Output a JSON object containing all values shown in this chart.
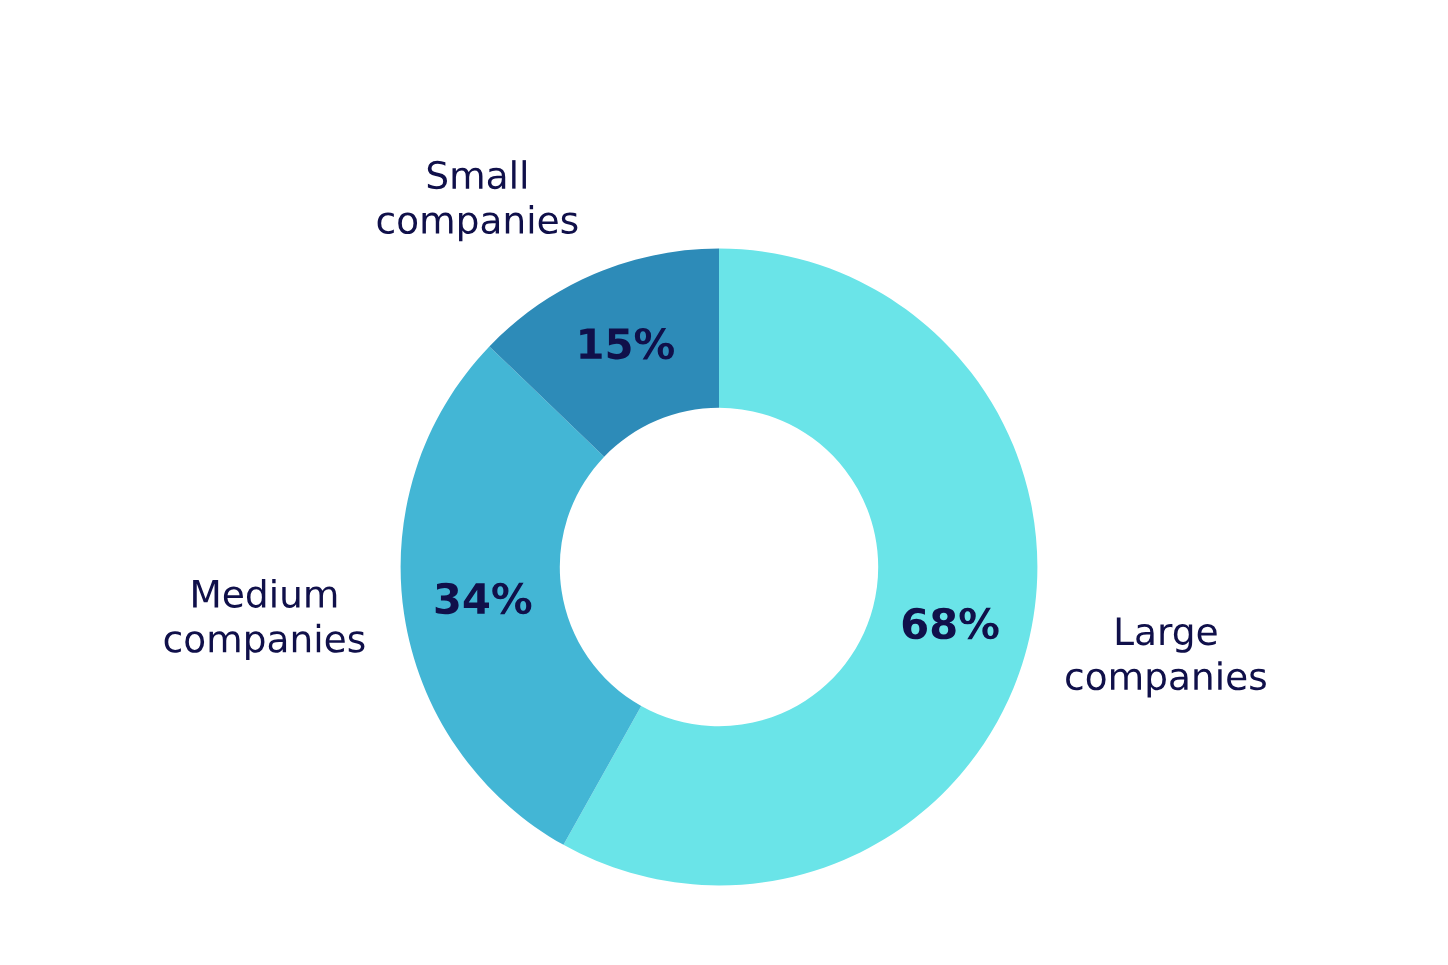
{
  "chart_data": {
    "type": "donut",
    "categories": [
      "Large\ncompanies",
      "Medium\ncompanies",
      "Small\ncompanies"
    ],
    "values": [
      68,
      34,
      15
    ],
    "colors": [
      "#6ae4e8",
      "#43b6d5",
      "#2d8bb8"
    ],
    "value_labels": [
      "68%",
      "34%",
      "15%"
    ]
  }
}
